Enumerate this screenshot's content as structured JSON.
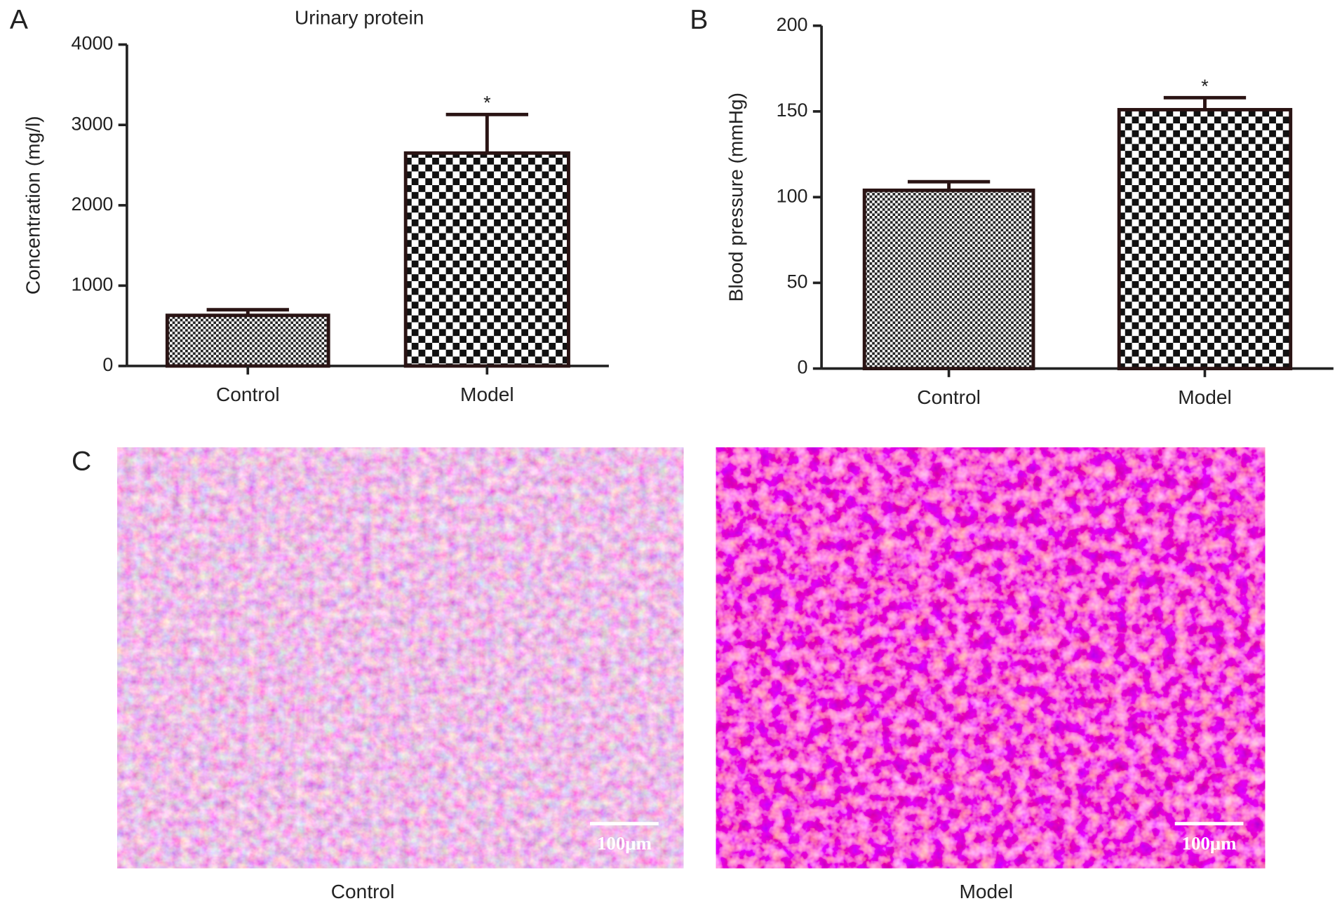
{
  "panel_labels": [
    "A",
    "B",
    "C"
  ],
  "chart_data": [
    {
      "type": "bar",
      "title": "Urinary protein",
      "y_label": "Concentration (mg/l)",
      "categories": [
        "Control",
        "Model"
      ],
      "values": [
        630,
        2650
      ],
      "errors": [
        70,
        480
      ],
      "significance": [
        null,
        "*"
      ],
      "ylim": [
        0,
        4000
      ],
      "yticks": [
        0,
        1000,
        2000,
        3000,
        4000
      ]
    },
    {
      "type": "bar",
      "y_label": "Blood pressure (mmHg)",
      "categories": [
        "Control",
        "Model"
      ],
      "values": [
        104,
        151
      ],
      "errors": [
        5,
        7
      ],
      "significance": [
        null,
        "*"
      ],
      "ylim": [
        0,
        200
      ],
      "yticks": [
        0,
        50,
        100,
        150,
        200
      ]
    }
  ],
  "micrographs": [
    {
      "caption": "Control",
      "scale_bar": "100μm"
    },
    {
      "caption": "Model",
      "scale_bar": "100μm"
    }
  ]
}
